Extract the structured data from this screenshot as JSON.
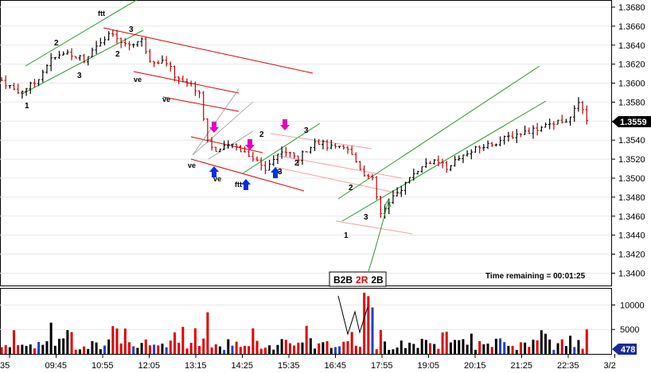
{
  "chart_data": {
    "type": "bar",
    "title": "",
    "price_axis": {
      "ylim": [
        1.3392,
        1.3685
      ],
      "ticks": [
        "1.3680",
        "1.3660",
        "1.3640",
        "1.3620",
        "1.3600",
        "1.3580",
        "1.3560",
        "1.3540",
        "1.3520",
        "1.3500",
        "1.3480",
        "1.3460",
        "1.3440",
        "1.3420",
        "1.3400"
      ],
      "current_price": "1.3559"
    },
    "volume_axis": {
      "ylim": [
        0,
        13000
      ],
      "ticks": [
        "10000",
        "5000"
      ],
      "current_volume": "478"
    },
    "time_axis": {
      "labels": [
        "35",
        "09:45",
        "10:55",
        "12:05",
        "13:15",
        "14:25",
        "15:35",
        "16:45",
        "17:55",
        "19:05",
        "20:15",
        "21:25",
        "22:35",
        "3/2"
      ]
    },
    "price_path": [
      [
        0,
        1.3603
      ],
      [
        4,
        1.359
      ],
      [
        8,
        1.36
      ],
      [
        12,
        1.3625
      ],
      [
        16,
        1.3632
      ],
      [
        20,
        1.3625
      ],
      [
        24,
        1.3645
      ],
      [
        26,
        1.3652
      ],
      [
        30,
        1.364
      ],
      [
        34,
        1.3645
      ],
      [
        36,
        1.3625
      ],
      [
        40,
        1.3622
      ],
      [
        42,
        1.3608
      ],
      [
        46,
        1.3598
      ],
      [
        48,
        1.359
      ],
      [
        50,
        1.354
      ],
      [
        52,
        1.3528
      ],
      [
        56,
        1.3535
      ],
      [
        60,
        1.3525
      ],
      [
        64,
        1.351
      ],
      [
        68,
        1.353
      ],
      [
        72,
        1.352
      ],
      [
        76,
        1.354
      ],
      [
        80,
        1.3532
      ],
      [
        84,
        1.353
      ],
      [
        88,
        1.3505
      ],
      [
        90,
        1.3498
      ],
      [
        92,
        1.3462
      ],
      [
        96,
        1.3484
      ],
      [
        100,
        1.3505
      ],
      [
        104,
        1.3518
      ],
      [
        108,
        1.3512
      ],
      [
        112,
        1.3524
      ],
      [
        116,
        1.3532
      ],
      [
        120,
        1.3538
      ],
      [
        124,
        1.3545
      ],
      [
        128,
        1.355
      ],
      [
        132,
        1.3555
      ],
      [
        135,
        1.356
      ],
      [
        138,
        1.3562
      ],
      [
        140,
        1.358
      ],
      [
        142,
        1.3559
      ]
    ],
    "volume_spikes": [
      [
        50,
        8500
      ],
      [
        88,
        12500
      ],
      [
        89,
        11800
      ],
      [
        90,
        9500
      ]
    ],
    "annotations": {
      "labels": [
        {
          "text": "ftt",
          "color": "#008000"
        },
        {
          "text": "2",
          "color": "#008000"
        },
        {
          "text": "3",
          "color": "#008000"
        },
        {
          "text": "1",
          "color": "#008000"
        },
        {
          "text": "3",
          "color": "#e00000"
        },
        {
          "text": "2",
          "color": "#e00000"
        },
        {
          "text": "ve",
          "color": "#e00000"
        },
        {
          "text": "ve",
          "color": "#e00000"
        },
        {
          "text": "ve",
          "color": "#e00000"
        },
        {
          "text": "ve",
          "color": "#e00000"
        },
        {
          "text": "ftt",
          "color": "#e00000"
        },
        {
          "text": "2",
          "color": "#008000"
        },
        {
          "text": "3",
          "color": "#008000"
        },
        {
          "text": "3",
          "color": "#e00000"
        },
        {
          "text": "2",
          "color": "#e00000"
        },
        {
          "text": "2",
          "color": "#008000"
        },
        {
          "text": "3",
          "color": "#008000"
        },
        {
          "text": "1",
          "color": "#008000"
        }
      ],
      "box": {
        "parts": [
          "B2B",
          "2R",
          "2B"
        ]
      },
      "time_remaining": "Time remaining = 00:01:25"
    }
  }
}
